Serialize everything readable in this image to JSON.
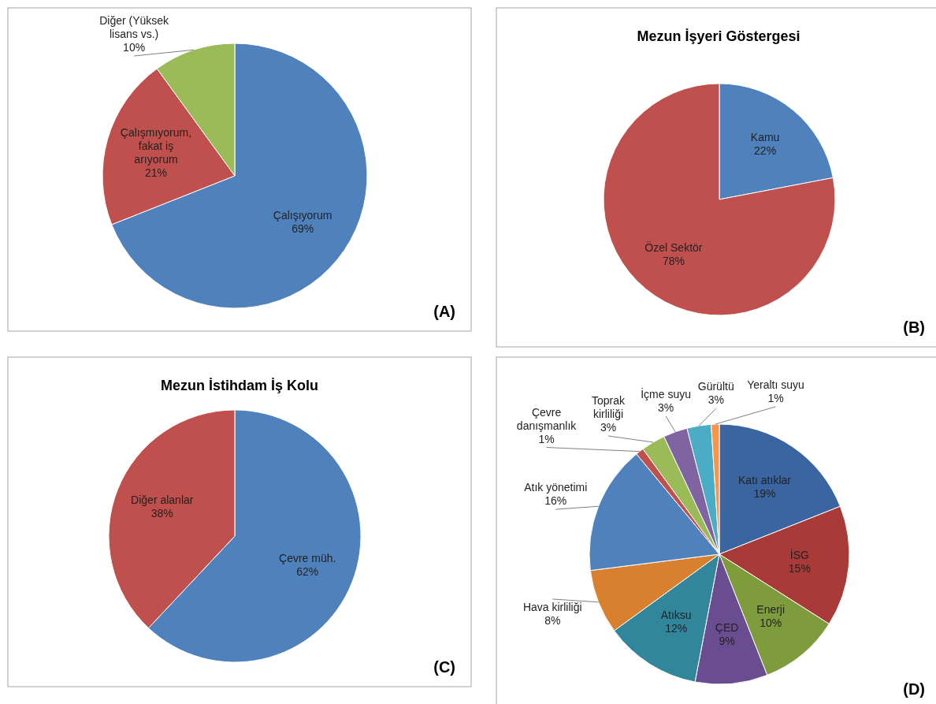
{
  "chart_data": [
    {
      "type": "pie",
      "categories": [
        "Çalışıyorum",
        "Çalışmıyorum, fakat iş arıyorum",
        "Diğer (Yüksek lisans vs.)"
      ],
      "values": [
        69,
        21,
        10
      ],
      "value_labels": [
        "69%",
        "21%",
        "10%"
      ],
      "colors": [
        "#4f81bd",
        "#c0504d",
        "#9bbb59"
      ],
      "annotations": [
        "(A)"
      ]
    },
    {
      "type": "pie",
      "title": "Mezun İşyeri Göstergesi",
      "categories": [
        "Kamu",
        "Özel Sektör"
      ],
      "values": [
        22,
        78
      ],
      "value_labels": [
        "22%",
        "78%"
      ],
      "colors": [
        "#4f81bd",
        "#c0504d"
      ],
      "annotations": [
        "(B)"
      ]
    },
    {
      "type": "pie",
      "title": "Mezun İstihdam İş Kolu",
      "categories": [
        "Çevre müh.",
        "Diğer alanlar"
      ],
      "values": [
        62,
        38
      ],
      "value_labels": [
        "62%",
        "38%"
      ],
      "colors": [
        "#4f81bd",
        "#c0504d"
      ],
      "annotations": [
        "(C)"
      ]
    },
    {
      "type": "pie",
      "categories": [
        "Katı atıklar",
        "İSG",
        "Enerji",
        "ÇED",
        "Atıksu",
        "Hava kirliliği",
        "Atık yönetimi",
        "Çevre danışmanlık",
        "Toprak kirliliği",
        "İçme suyu",
        "Gürültü",
        "Yeraltı suyu"
      ],
      "values": [
        19,
        15,
        10,
        9,
        12,
        8,
        16,
        1,
        3,
        3,
        3,
        1
      ],
      "value_labels": [
        "19%",
        "15%",
        "10%",
        "9%",
        "12%",
        "8%",
        "16%",
        "1%",
        "3%",
        "3%",
        "3%",
        "1%"
      ],
      "colors": [
        "#3a65a0",
        "#a93a38",
        "#7f9c3c",
        "#6a4c91",
        "#31869b",
        "#d9802f",
        "#4f81bd",
        "#c0504d",
        "#9bbb59",
        "#8064a2",
        "#4bacc6",
        "#f79646"
      ],
      "annotations": [
        "(D)"
      ]
    }
  ]
}
